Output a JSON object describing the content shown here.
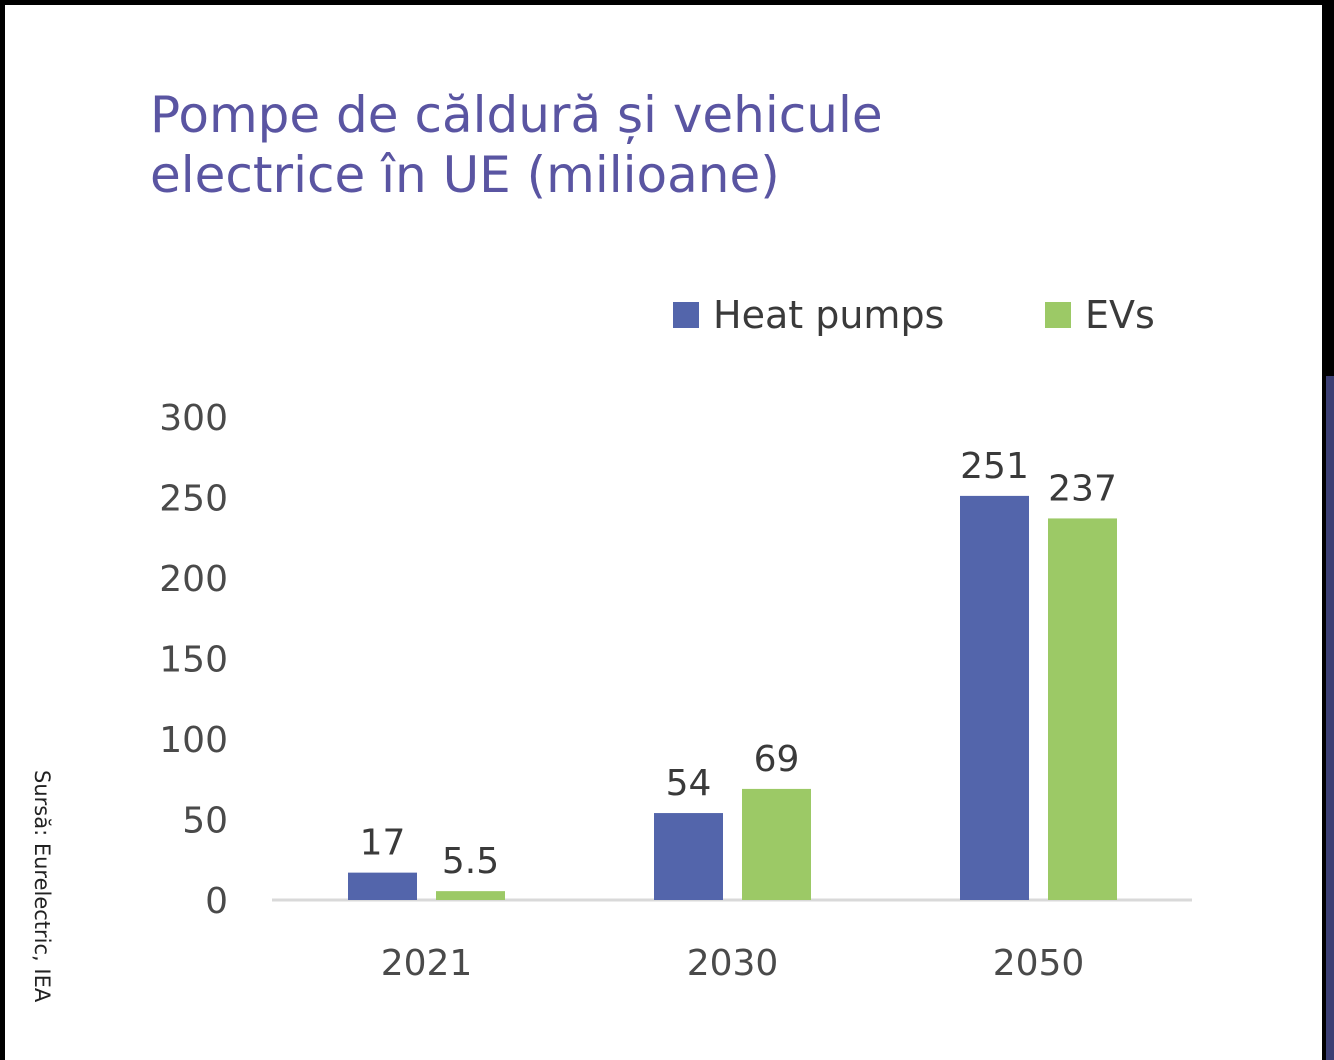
{
  "title_lines": [
    "Pompe de căldură și vehicule",
    "electrice în UE (milioane)"
  ],
  "source": "Sursă: Eurelectric, IEA",
  "chart_data": {
    "type": "bar",
    "categories": [
      "2021",
      "2030",
      "2050"
    ],
    "series": [
      {
        "name": "Heat pumps",
        "values": [
          17,
          54,
          251
        ],
        "labels": [
          "17",
          "54",
          "251"
        ],
        "color": "#5365ab"
      },
      {
        "name": "EVs",
        "values": [
          5.5,
          69,
          237
        ],
        "labels": [
          "5.5",
          "69",
          "237"
        ],
        "color": "#9cc966"
      }
    ],
    "yticks": [
      "0",
      "50",
      "100",
      "150",
      "200",
      "250",
      "300"
    ],
    "ylim": [
      0,
      300
    ],
    "grid": false,
    "legend": "top-right"
  }
}
